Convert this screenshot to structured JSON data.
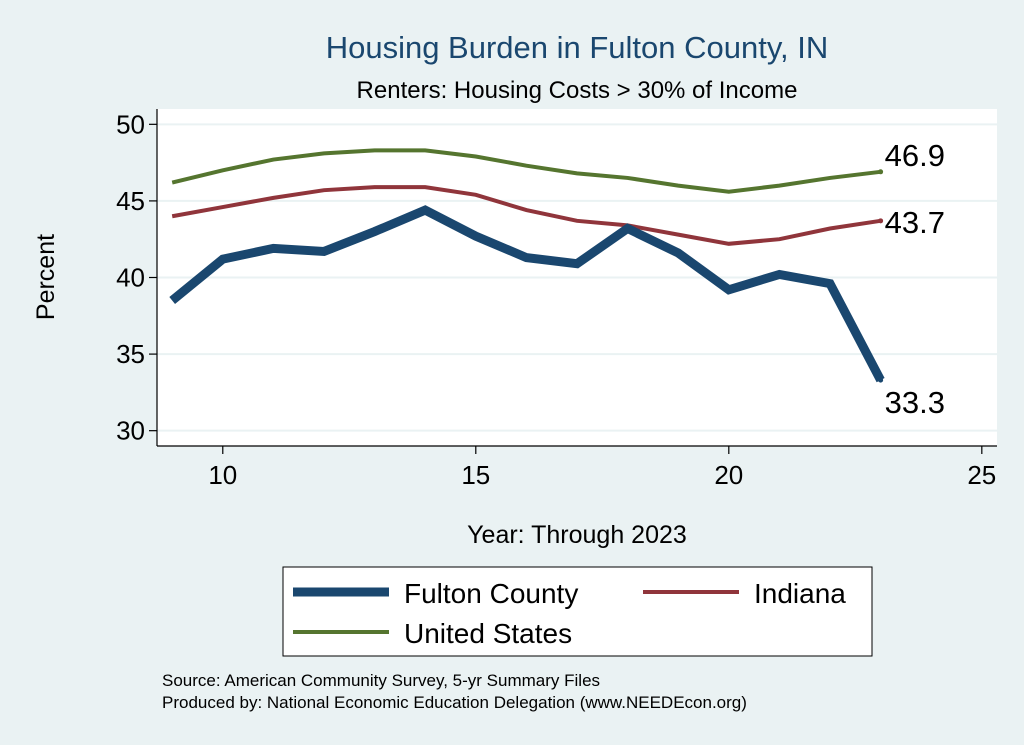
{
  "chart_data": {
    "type": "line",
    "title": "Housing Burden in Fulton County, IN",
    "subtitle": "Renters: Housing Costs > 30% of Income",
    "xlabel": "Year: Through 2023",
    "ylabel": "Percent",
    "xlim": [
      8.7,
      25.3
    ],
    "ylim": [
      29,
      51
    ],
    "xticks": [
      "10",
      "15",
      "20",
      "25"
    ],
    "yticks": [
      "30",
      "35",
      "40",
      "45",
      "50"
    ],
    "grid": true,
    "legend_position": "bottom",
    "x": [
      9,
      10,
      11,
      12,
      13,
      14,
      15,
      16,
      17,
      18,
      19,
      20,
      21,
      22,
      23
    ],
    "series": [
      {
        "name": "Fulton County",
        "color": "#1a476f",
        "values": [
          38.5,
          41.2,
          41.9,
          41.7,
          43.0,
          44.4,
          42.7,
          41.3,
          40.9,
          43.2,
          41.6,
          39.2,
          40.2,
          39.6,
          33.3
        ],
        "end_label": "33.3"
      },
      {
        "name": "Indiana",
        "color": "#90353b",
        "values": [
          44.0,
          44.6,
          45.2,
          45.7,
          45.9,
          45.9,
          45.4,
          44.4,
          43.7,
          43.4,
          42.8,
          42.2,
          42.5,
          43.2,
          43.7
        ],
        "end_label": "43.7"
      },
      {
        "name": "United States",
        "color": "#55752f",
        "values": [
          46.2,
          47.0,
          47.7,
          48.1,
          48.3,
          48.3,
          47.9,
          47.3,
          46.8,
          46.5,
          46.0,
          45.6,
          46.0,
          46.5,
          46.9
        ],
        "end_label": "46.9"
      }
    ]
  },
  "source": {
    "line1": "Source: American Community Survey, 5-yr Summary Files",
    "line2": "Produced by: National Economic Education Delegation (www.NEEDEcon.org)"
  }
}
